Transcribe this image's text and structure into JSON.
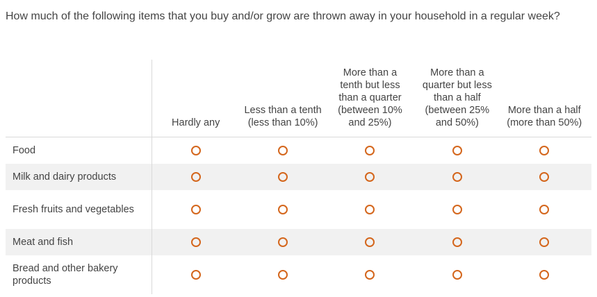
{
  "question": {
    "text": "How much of the following items that you buy and/or grow are thrown away in your household in a regular week?"
  },
  "columns": [
    "Hardly any",
    "Less than a tenth (less than 10%)",
    "More than a tenth but less than a quarter (between 10% and 25%)",
    "More than a quarter but less than a half (between 25% and 50%)",
    "More than a half (more than 50%)"
  ],
  "rows": [
    "Food",
    "Milk and dairy products",
    "Fresh fruits and vegetables",
    "Meat and fish",
    "Bread and other bakery products"
  ],
  "colors": {
    "radio_accent": "#d4661c",
    "alt_row_bg": "#f1f1f1",
    "divider": "#d9d9d9"
  }
}
